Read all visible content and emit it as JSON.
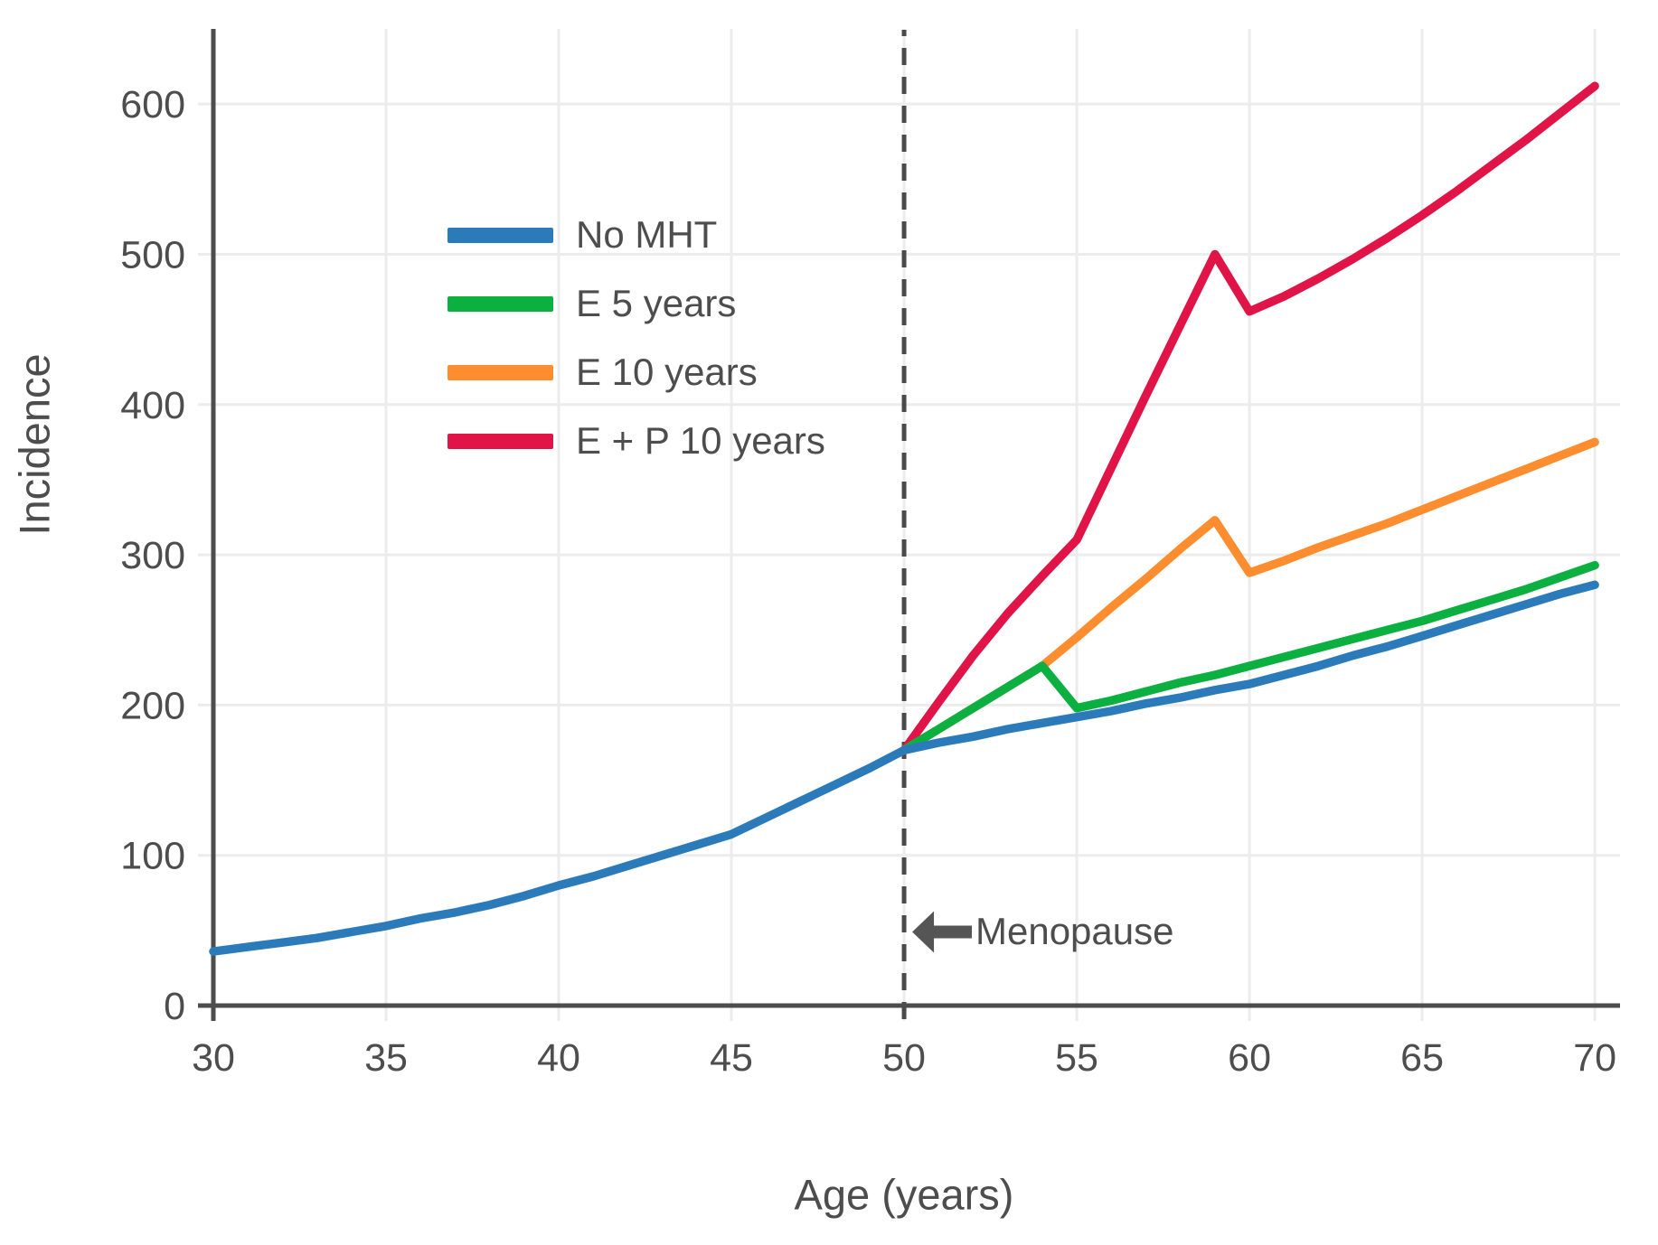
{
  "chart_data": {
    "type": "line",
    "title": "",
    "xlabel": "Age (years)",
    "ylabel": "Incidence",
    "x_ticks": [
      30,
      35,
      40,
      45,
      50,
      55,
      60,
      65,
      70
    ],
    "y_ticks": [
      0,
      100,
      200,
      300,
      400,
      500,
      600
    ],
    "xlim": [
      30,
      70.73
    ],
    "ylim": [
      0,
      650
    ],
    "grid": true,
    "legend_position": "upper-left-inside",
    "vline": {
      "x": 50,
      "style": "dashed"
    },
    "annotation": {
      "text": "Menopause",
      "x": 50,
      "y": 49,
      "arrow": "left"
    },
    "series": [
      {
        "name": "No MHT",
        "color": "#2b7bba",
        "points": [
          [
            30,
            36
          ],
          [
            31,
            39
          ],
          [
            32,
            42
          ],
          [
            33,
            45
          ],
          [
            34,
            49
          ],
          [
            35,
            53
          ],
          [
            36,
            58
          ],
          [
            37,
            62
          ],
          [
            38,
            67
          ],
          [
            39,
            73
          ],
          [
            40,
            80
          ],
          [
            41,
            86
          ],
          [
            42,
            93
          ],
          [
            43,
            100
          ],
          [
            44,
            107
          ],
          [
            45,
            114
          ],
          [
            46,
            125
          ],
          [
            47,
            136
          ],
          [
            48,
            147
          ],
          [
            49,
            158
          ],
          [
            50,
            170
          ],
          [
            51,
            175
          ],
          [
            52,
            179
          ],
          [
            53,
            184
          ],
          [
            54,
            188
          ],
          [
            55,
            192
          ],
          [
            56,
            196
          ],
          [
            57,
            201
          ],
          [
            58,
            205
          ],
          [
            59,
            210
          ],
          [
            60,
            214
          ],
          [
            61,
            220
          ],
          [
            62,
            226
          ],
          [
            63,
            233
          ],
          [
            64,
            239
          ],
          [
            65,
            246
          ],
          [
            66,
            253
          ],
          [
            67,
            260
          ],
          [
            68,
            267
          ],
          [
            69,
            274
          ],
          [
            70,
            280
          ]
        ]
      },
      {
        "name": "E 5 years",
        "color": "#0cb041",
        "points": [
          [
            50,
            170
          ],
          [
            51,
            184
          ],
          [
            52,
            198
          ],
          [
            53,
            212
          ],
          [
            54,
            226
          ],
          [
            55,
            198
          ],
          [
            56,
            203
          ],
          [
            57,
            209
          ],
          [
            58,
            215
          ],
          [
            59,
            220
          ],
          [
            60,
            226
          ],
          [
            61,
            232
          ],
          [
            62,
            238
          ],
          [
            63,
            244
          ],
          [
            64,
            250
          ],
          [
            65,
            256
          ],
          [
            66,
            263
          ],
          [
            67,
            270
          ],
          [
            68,
            277
          ],
          [
            69,
            285
          ],
          [
            70,
            293
          ]
        ]
      },
      {
        "name": "E 10 years",
        "color": "#fd8d2e",
        "points": [
          [
            50,
            170
          ],
          [
            51,
            184
          ],
          [
            52,
            198
          ],
          [
            53,
            212
          ],
          [
            54,
            226
          ],
          [
            55,
            245
          ],
          [
            56,
            265
          ],
          [
            57,
            284
          ],
          [
            58,
            304
          ],
          [
            59,
            323
          ],
          [
            60,
            288
          ],
          [
            61,
            296
          ],
          [
            62,
            305
          ],
          [
            63,
            313
          ],
          [
            64,
            321
          ],
          [
            65,
            330
          ],
          [
            66,
            339
          ],
          [
            67,
            348
          ],
          [
            68,
            357
          ],
          [
            69,
            366
          ],
          [
            70,
            375
          ]
        ]
      },
      {
        "name": "E + P 10 years",
        "color": "#e01447",
        "points": [
          [
            50,
            170
          ],
          [
            51,
            202
          ],
          [
            52,
            233
          ],
          [
            53,
            261
          ],
          [
            54,
            286
          ],
          [
            55,
            310
          ],
          [
            56,
            358
          ],
          [
            57,
            406
          ],
          [
            58,
            453
          ],
          [
            59,
            500
          ],
          [
            60,
            462
          ],
          [
            61,
            472
          ],
          [
            62,
            484
          ],
          [
            63,
            497
          ],
          [
            64,
            511
          ],
          [
            65,
            526
          ],
          [
            66,
            542
          ],
          [
            67,
            559
          ],
          [
            68,
            576
          ],
          [
            69,
            594
          ],
          [
            70,
            612
          ]
        ]
      }
    ],
    "colors": {
      "axis": "#4d4d4d",
      "grid": "#ececec",
      "tick_label": "#4d4d4d",
      "text": "#4d4d4d",
      "dashed_line": "#4a4a4a",
      "background": "#ffffff"
    }
  }
}
